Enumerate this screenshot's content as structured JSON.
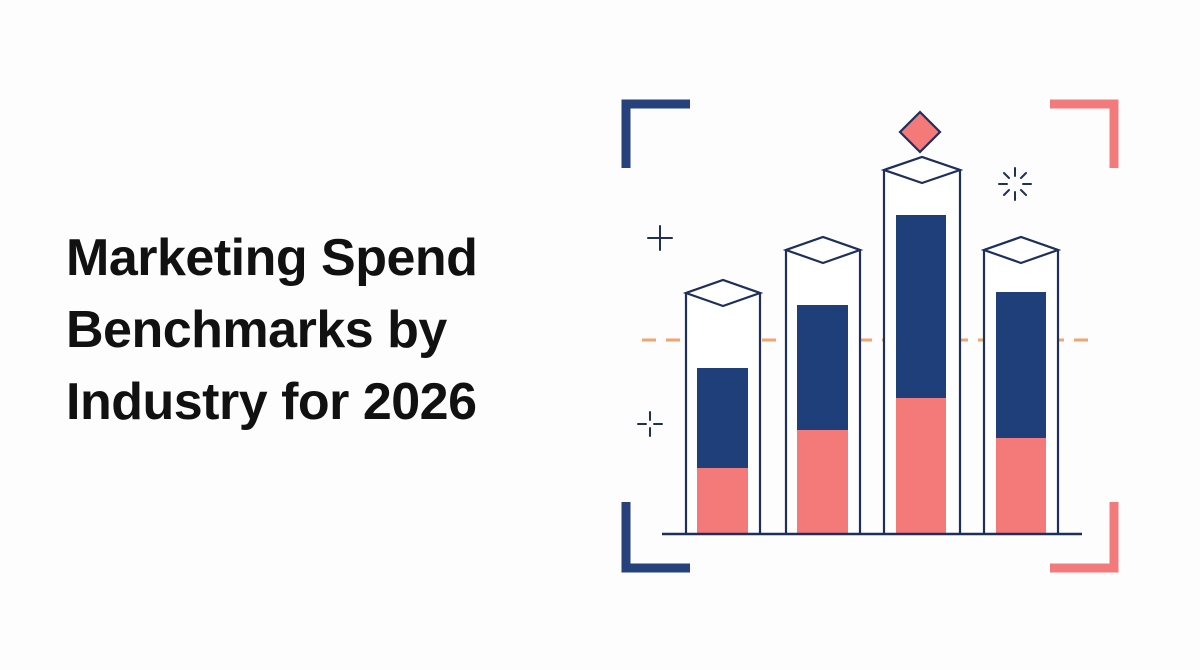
{
  "title": {
    "lines": [
      "Marketing Spend",
      "Benchmarks by",
      "Industry for 2026"
    ]
  }
}
